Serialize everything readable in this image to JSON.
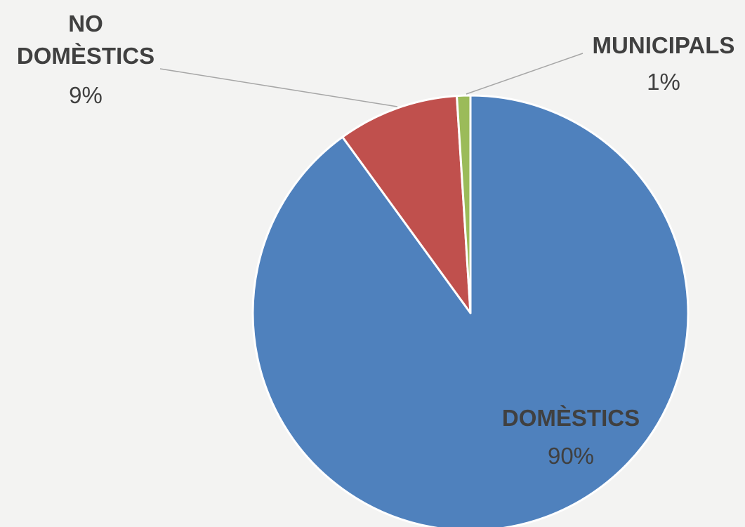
{
  "chart_data": {
    "type": "pie",
    "title": "",
    "slices": [
      {
        "label": "DOMÈSTICS",
        "value": 90,
        "value_label": "90%",
        "color": "#4f81bd"
      },
      {
        "label_lines": [
          "NO",
          "DOMÈSTICS"
        ],
        "label": "NO DOMÈSTICS",
        "value": 9,
        "value_label": "9%",
        "color": "#c0504d"
      },
      {
        "label": "MUNICIPALS",
        "value": 1,
        "value_label": "1%",
        "color": "#9bbb59"
      }
    ],
    "start_angle": "12 o'clock",
    "direction": "clockwise",
    "legend": "none",
    "data_labels": "category name and percentage",
    "leader_lines": true
  },
  "colors": {
    "background": "#f3f3f2",
    "label_text": "#404040",
    "leader_line": "#a6a6a6",
    "slice_border": "#ffffff"
  }
}
